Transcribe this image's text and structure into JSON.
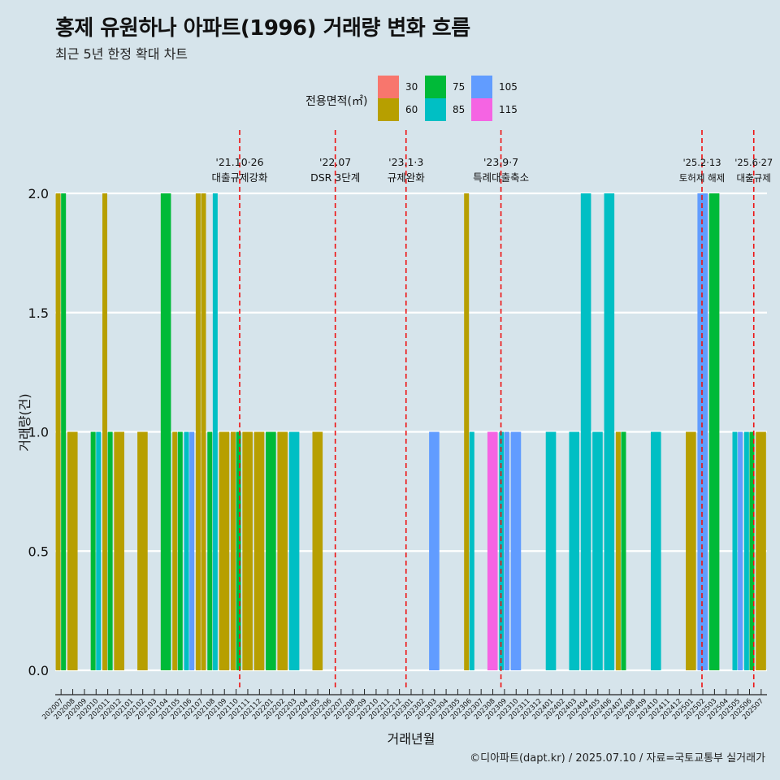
{
  "header": {
    "title": "홍제 유원하나 아파트(1996) 거래량 변화 흐름",
    "subtitle": "최근 5년 한정 확대 차트"
  },
  "legend": {
    "title": "전용면적(㎡)",
    "items": [
      {
        "label": "30",
        "color": "#F8766D"
      },
      {
        "label": "60",
        "color": "#B79F00"
      },
      {
        "label": "75",
        "color": "#00BA38"
      },
      {
        "label": "85",
        "color": "#00BFC4"
      },
      {
        "label": "105",
        "color": "#619CFF"
      },
      {
        "label": "115",
        "color": "#F564E3"
      }
    ]
  },
  "caption": "©디아파트(dapt.kr) / 2025.07.10 / 자료=국토교통부 실거래가",
  "chart_data": {
    "type": "bar",
    "xlabel": "거래년월",
    "ylabel": "거래량(건)",
    "ylim": [
      0,
      2
    ],
    "yticks": [
      "0.0",
      "0.5",
      "1.0",
      "1.5",
      "2.0"
    ],
    "grid": true,
    "legend_position": "top",
    "categories": [
      "202007",
      "202008",
      "202009",
      "202010",
      "202011",
      "202012",
      "202101",
      "202102",
      "202103",
      "202104",
      "202105",
      "202106",
      "202107",
      "202108",
      "202109",
      "202110",
      "202111",
      "202112",
      "202201",
      "202202",
      "202203",
      "202204",
      "202205",
      "202206",
      "202207",
      "202208",
      "202209",
      "202210",
      "202211",
      "202212",
      "202301",
      "202302",
      "202303",
      "202304",
      "202305",
      "202306",
      "202307",
      "202308",
      "202309",
      "202310",
      "202311",
      "202312",
      "202401",
      "202402",
      "202403",
      "202404",
      "202405",
      "202406",
      "202407",
      "202408",
      "202409",
      "202410",
      "202411",
      "202412",
      "202501",
      "202502",
      "202503",
      "202504",
      "202505",
      "202506",
      "202507"
    ],
    "bars": [
      {
        "month": "202007",
        "area": "60",
        "value": 2
      },
      {
        "month": "202007",
        "area": "75",
        "value": 2
      },
      {
        "month": "202008",
        "area": "60",
        "value": 1
      },
      {
        "month": "202010",
        "area": "75",
        "value": 1
      },
      {
        "month": "202010",
        "area": "85",
        "value": 1
      },
      {
        "month": "202011",
        "area": "60",
        "value": 2
      },
      {
        "month": "202011",
        "area": "75",
        "value": 1
      },
      {
        "month": "202012",
        "area": "60",
        "value": 1
      },
      {
        "month": "202102",
        "area": "60",
        "value": 1
      },
      {
        "month": "202104",
        "area": "75",
        "value": 2
      },
      {
        "month": "202105",
        "area": "60",
        "value": 1
      },
      {
        "month": "202105",
        "area": "75",
        "value": 1
      },
      {
        "month": "202106",
        "area": "85",
        "value": 1
      },
      {
        "month": "202106",
        "area": "105",
        "value": 1
      },
      {
        "month": "202107",
        "area": "60",
        "value": 2
      },
      {
        "month": "202107",
        "area": "60",
        "value": 2
      },
      {
        "month": "202108",
        "area": "75",
        "value": 1
      },
      {
        "month": "202108",
        "area": "85",
        "value": 2
      },
      {
        "month": "202109",
        "area": "60",
        "value": 1
      },
      {
        "month": "202110",
        "area": "60",
        "value": 1
      },
      {
        "month": "202110",
        "area": "75",
        "value": 1
      },
      {
        "month": "202111",
        "area": "60",
        "value": 1
      },
      {
        "month": "202112",
        "area": "60",
        "value": 1
      },
      {
        "month": "202201",
        "area": "75",
        "value": 1
      },
      {
        "month": "202202",
        "area": "60",
        "value": 1
      },
      {
        "month": "202203",
        "area": "85",
        "value": 1
      },
      {
        "month": "202205",
        "area": "60",
        "value": 1
      },
      {
        "month": "202303",
        "area": "105",
        "value": 1
      },
      {
        "month": "202306",
        "area": "60",
        "value": 2
      },
      {
        "month": "202306",
        "area": "85",
        "value": 1
      },
      {
        "month": "202308",
        "area": "115",
        "value": 1
      },
      {
        "month": "202309",
        "area": "85",
        "value": 1
      },
      {
        "month": "202309",
        "area": "105",
        "value": 1
      },
      {
        "month": "202310",
        "area": "105",
        "value": 1
      },
      {
        "month": "202401",
        "area": "85",
        "value": 1
      },
      {
        "month": "202403",
        "area": "85",
        "value": 1
      },
      {
        "month": "202404",
        "area": "85",
        "value": 2
      },
      {
        "month": "202405",
        "area": "85",
        "value": 1
      },
      {
        "month": "202406",
        "area": "85",
        "value": 2
      },
      {
        "month": "202407",
        "area": "60",
        "value": 1
      },
      {
        "month": "202407",
        "area": "75",
        "value": 1
      },
      {
        "month": "202410",
        "area": "85",
        "value": 1
      },
      {
        "month": "202501",
        "area": "60",
        "value": 1
      },
      {
        "month": "202502",
        "area": "105",
        "value": 2
      },
      {
        "month": "202503",
        "area": "75",
        "value": 2
      },
      {
        "month": "202505",
        "area": "85",
        "value": 1
      },
      {
        "month": "202505",
        "area": "105",
        "value": 1
      },
      {
        "month": "202506",
        "area": "85",
        "value": 1
      },
      {
        "month": "202506",
        "area": "75",
        "value": 1
      },
      {
        "month": "202507",
        "area": "60",
        "value": 1
      }
    ],
    "events": [
      {
        "date": "2021-10-26",
        "top": "'21.10·26",
        "bottom": "대출규제강화"
      },
      {
        "date": "2022-07-01",
        "top": "'22.07",
        "bottom": "DSR 3단계"
      },
      {
        "date": "2023-01-03",
        "top": "'23.1·3",
        "bottom": "규제완화"
      },
      {
        "date": "2023-09-07",
        "top": "'23.9·7",
        "bottom": "특례대출축소"
      },
      {
        "date": "2025-02-13",
        "top": "'25.2·13",
        "bottom": "토허제 해제"
      },
      {
        "date": "2025-06-27",
        "top": "'25.6·27",
        "bottom": "대출규제"
      }
    ]
  }
}
